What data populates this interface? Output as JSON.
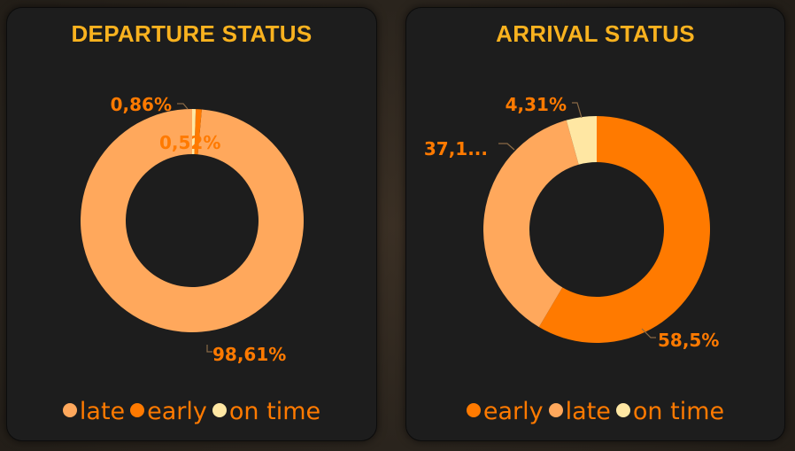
{
  "chart_data": [
    {
      "type": "pie",
      "title": "DEPARTURE STATUS",
      "slices": [
        {
          "name": "late",
          "value": 98.61,
          "label": "98,61%",
          "color": "#ffa85c"
        },
        {
          "name": "early",
          "value": 0.86,
          "label": "0,86%",
          "color": "#ff7a00"
        },
        {
          "name": "on time",
          "value": 0.52,
          "label": "0,52%",
          "color": "#ffe7a3"
        }
      ],
      "legend": {
        "placement": "bottom",
        "items": [
          {
            "label": "late",
            "color": "#ffa85c"
          },
          {
            "label": "early",
            "color": "#ff7a00"
          },
          {
            "label": "on time",
            "color": "#ffe7a3"
          }
        ]
      }
    },
    {
      "type": "pie",
      "title": "ARRIVAL STATUS",
      "slices": [
        {
          "name": "early",
          "value": 58.5,
          "label": "58,5%",
          "color": "#ff7a00"
        },
        {
          "name": "late",
          "value": 37.19,
          "label": "37,1...",
          "color": "#ffa85c"
        },
        {
          "name": "on time",
          "value": 4.31,
          "label": "4,31%",
          "color": "#ffe7a3"
        }
      ],
      "legend": {
        "placement": "bottom",
        "items": [
          {
            "label": "early",
            "color": "#ff7a00"
          },
          {
            "label": "late",
            "color": "#ffa85c"
          },
          {
            "label": "on time",
            "color": "#ffe7a3"
          }
        ]
      }
    }
  ]
}
